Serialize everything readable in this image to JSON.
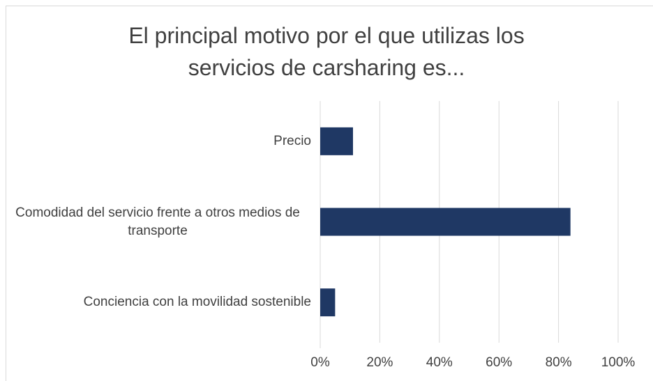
{
  "chart_data": {
    "type": "bar",
    "orientation": "horizontal",
    "title": "El principal motivo por el que utilizas los servicios de carsharing es...",
    "categories": [
      "Precio",
      "Comodidad del servicio frente a otros medios de transporte",
      "Conciencia con la movilidad sostenible"
    ],
    "values": [
      11,
      84,
      5
    ],
    "color": "#1f3864",
    "xlim": [
      0,
      100
    ],
    "xticks": [
      {
        "value": 0,
        "label": "0%"
      },
      {
        "value": 20,
        "label": "20%"
      },
      {
        "value": 40,
        "label": "40%"
      },
      {
        "value": 60,
        "label": "60%"
      },
      {
        "value": 80,
        "label": "80%"
      },
      {
        "value": 100,
        "label": "100%"
      }
    ],
    "grid": true
  }
}
